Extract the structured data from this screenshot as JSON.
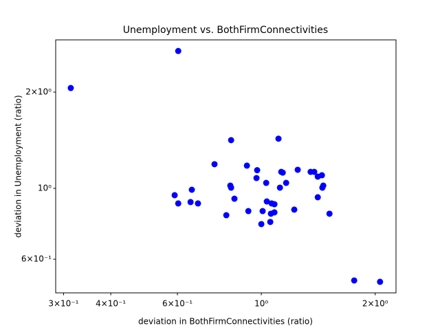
{
  "chart_data": {
    "type": "scatter",
    "title": "Unemployment vs. BothFirmConnectivities",
    "x_label": "deviation in BothFirmConnectivities (ratio)",
    "y_label": "deviation in Unemployment (ratio)",
    "x_scale": "log",
    "y_scale": "log",
    "xlim": [
      0.286,
      2.27
    ],
    "ylim": [
      0.471,
      2.914
    ],
    "xticks": [
      {
        "value": 0.3,
        "label": "3×10⁻¹"
      },
      {
        "value": 0.4,
        "label": "4×10⁻¹"
      },
      {
        "value": 0.6,
        "label": "6×10⁻¹"
      },
      {
        "value": 1,
        "label": "10⁰"
      },
      {
        "value": 2,
        "label": "2×10⁰"
      }
    ],
    "yticks": [
      {
        "value": 0.6,
        "label": "6×10⁻¹"
      },
      {
        "value": 1,
        "label": "10⁰"
      },
      {
        "value": 2,
        "label": "2×10⁰"
      }
    ],
    "series": [
      {
        "color": "#0000ff",
        "x": [
          0.3135,
          0.603,
          0.832,
          1.11,
          0.752,
          0.916,
          0.975,
          1.139,
          1.129,
          1.248,
          1.35,
          1.38,
          1.41,
          1.446,
          0.971,
          1.03,
          1.163,
          1.12,
          1.458,
          1.45,
          0.828,
          0.832,
          0.655,
          0.59,
          0.849,
          1.41,
          0.603,
          0.65,
          0.68,
          1.034,
          1.065,
          1.083,
          0.924,
          1.008,
          1.083,
          1.06,
          1.222,
          0.808,
          1.514,
          1.0,
          1.056,
          1.76,
          2.06
        ],
        "values": [
          2.06,
          2.69,
          1.415,
          1.43,
          1.19,
          1.178,
          1.14,
          1.12,
          1.126,
          1.143,
          1.126,
          1.126,
          1.088,
          1.099,
          1.077,
          1.04,
          1.04,
          1.005,
          1.02,
          1.005,
          1.02,
          1.005,
          0.99,
          0.952,
          0.928,
          0.938,
          0.897,
          0.906,
          0.897,
          0.91,
          0.897,
          0.892,
          0.849,
          0.849,
          0.841,
          0.833,
          0.858,
          0.824,
          0.833,
          0.773,
          0.785,
          0.515,
          0.51
        ]
      }
    ]
  }
}
